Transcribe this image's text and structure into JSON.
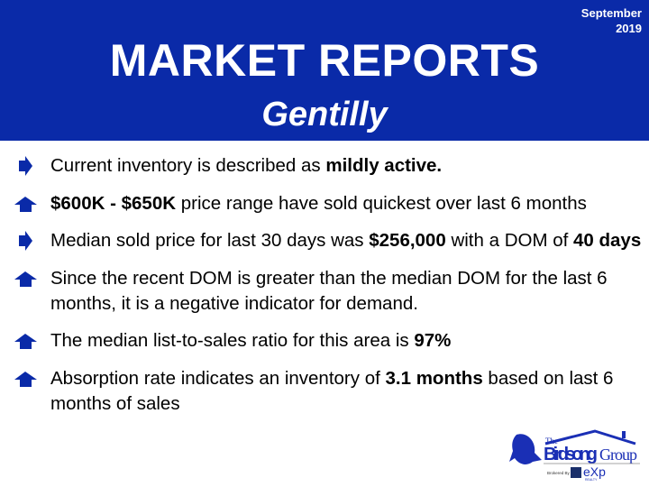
{
  "header": {
    "date_line1": "September",
    "date_line2": "2019",
    "title": "MARKET REPORTS",
    "subtitle": "Gentilly",
    "bg_color": "#0a2aa8"
  },
  "bullets": [
    {
      "icon": "arrow-right-icon",
      "parts": [
        "Current inventory is described as ",
        "mildly active.",
        ""
      ]
    },
    {
      "icon": "arrow-up-icon",
      "parts": [
        "",
        "$600K - $650K",
        " price range have sold quickest over last 6 months"
      ]
    },
    {
      "icon": "arrow-right-icon",
      "parts": [
        "Median sold price for last 30 days was ",
        "$256,000",
        " with a DOM of ",
        "40 days"
      ]
    },
    {
      "icon": "arrow-up-icon",
      "parts": [
        "Since the recent DOM is greater than the median DOM for the last 6 months, it is a negative indicator for demand.",
        "",
        ""
      ]
    },
    {
      "icon": "arrow-up-icon",
      "parts": [
        "The median list-to-sales ratio for this area is ",
        "97%",
        ""
      ]
    },
    {
      "icon": "arrow-up-icon",
      "parts": [
        "Absorption rate indicates an inventory of ",
        "3.1 months",
        " based on last 6 months of sales"
      ]
    }
  ],
  "logo": {
    "line1": "The",
    "line2": "Birdsong",
    "line3": "Group",
    "broker": "Brokered By",
    "brand": "eXp",
    "brand_sub": "REALTY"
  }
}
